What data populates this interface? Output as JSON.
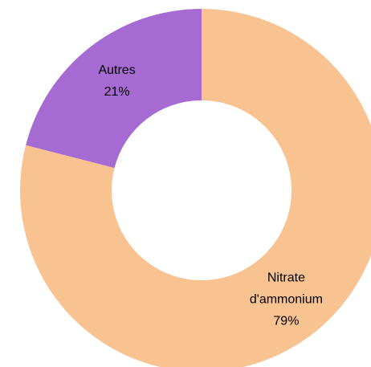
{
  "chart_data": {
    "type": "donut",
    "categories": [
      "Nitrate d'ammonium",
      "Autres"
    ],
    "values": [
      79,
      21
    ],
    "value_labels": [
      "79%",
      "21%"
    ],
    "colors": [
      "#f9c291",
      "#a66bd3"
    ]
  }
}
